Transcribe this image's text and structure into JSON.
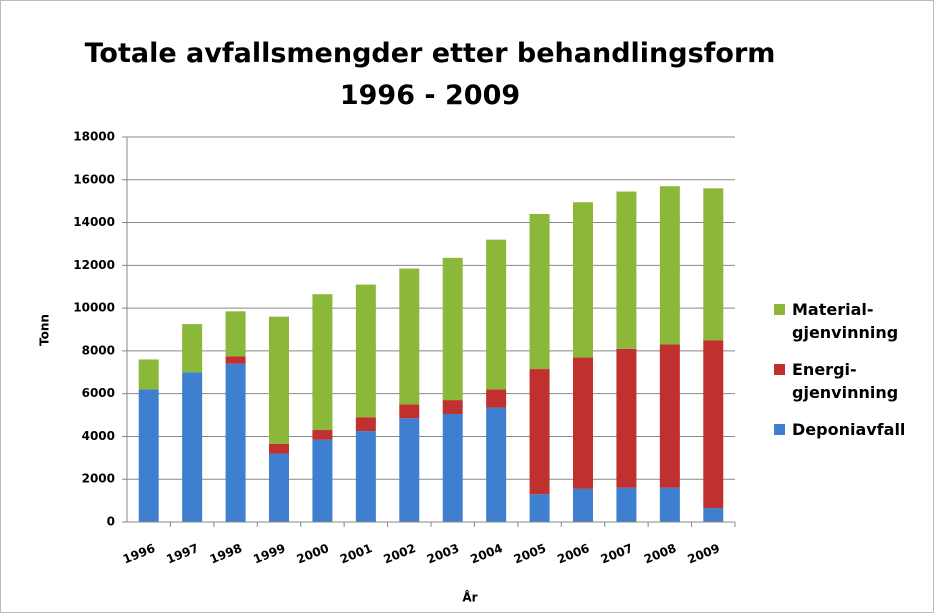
{
  "chart_data": {
    "type": "stacked-bar",
    "title": "Totale avfallsmengder etter behandlingsform",
    "subtitle": "1996 - 2009",
    "x_label": "År",
    "y_label": "Tonn",
    "categories": [
      "1996",
      "1997",
      "1998",
      "1999",
      "2000",
      "2001",
      "2002",
      "2003",
      "2004",
      "2005",
      "2006",
      "2007",
      "2008",
      "2009"
    ],
    "series": [
      {
        "name": "Deponiavfall",
        "color": "#3f7fcf",
        "values": [
          6200,
          7000,
          7400,
          3200,
          3850,
          4250,
          4850,
          5050,
          5350,
          1300,
          1550,
          1600,
          1600,
          650
        ]
      },
      {
        "name": "Energi-\ngjenvinning",
        "color": "#c0302e",
        "values": [
          0,
          0,
          350,
          450,
          450,
          650,
          650,
          650,
          850,
          5850,
          6150,
          6500,
          6700,
          7850
        ]
      },
      {
        "name": "Material-\ngjenvinning",
        "color": "#8cb83a",
        "values": [
          1400,
          2250,
          2100,
          5950,
          6350,
          6200,
          6350,
          6650,
          7000,
          7250,
          7250,
          7350,
          7400,
          7100
        ]
      }
    ],
    "ylim": [
      0,
      18000
    ],
    "yticks": [
      0,
      2000,
      4000,
      6000,
      8000,
      10000,
      12000,
      14000,
      16000,
      18000
    ],
    "grid": true,
    "legend": "right"
  }
}
